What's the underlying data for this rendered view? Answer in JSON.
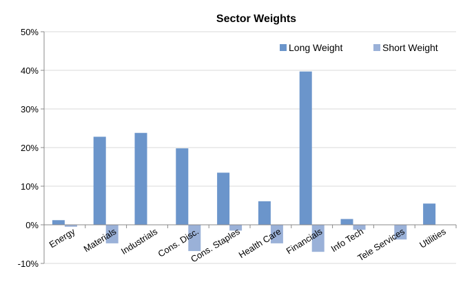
{
  "chart_data": {
    "type": "bar",
    "title": "Sector Weights",
    "xlabel": "",
    "ylabel": "",
    "ylim": [
      -10,
      50
    ],
    "yticks": [
      -10,
      0,
      10,
      20,
      30,
      40,
      50
    ],
    "ytick_labels": [
      "-10%",
      "0%",
      "10%",
      "20%",
      "30%",
      "40%",
      "50%"
    ],
    "grid": "horizontal",
    "legend_position": "top-right",
    "categories": [
      "Energy",
      "Materials",
      "Industrials",
      "Cons. Disc.",
      "Cons. Staples",
      "Health Care",
      "Financials",
      "Info Tech",
      "Tele Services",
      "Utilities"
    ],
    "series": [
      {
        "name": "Long Weight",
        "color": "#6b95cb",
        "values": [
          1.2,
          22.8,
          23.8,
          19.8,
          13.5,
          6.1,
          39.7,
          1.5,
          0,
          5.5
        ]
      },
      {
        "name": "Short Weight",
        "color": "#9ab1d8",
        "values": [
          -0.5,
          -4.8,
          0,
          -6.8,
          -1.5,
          -4.8,
          -7.0,
          -1.3,
          -3.8,
          0
        ]
      }
    ]
  }
}
